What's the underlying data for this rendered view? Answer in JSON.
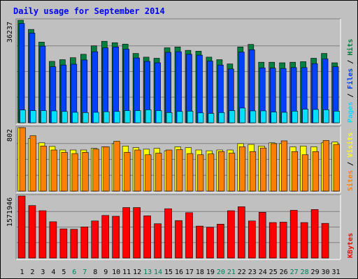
{
  "title": "Daily usage for September 2014",
  "colors": {
    "background": "#C0C0C0",
    "frame_border": "#000000",
    "title_text": "#0000FF",
    "hits": "#008040",
    "files": "#0040FF",
    "pages": "#00E0FF",
    "visits": "#FFFF00",
    "sites": "#FF8000",
    "kbytes": "#FF0000",
    "weekday_label": "#000000",
    "weekend_label": "#00805C"
  },
  "chart_data": {
    "type": "bar",
    "x": [
      1,
      2,
      3,
      4,
      5,
      6,
      7,
      8,
      9,
      10,
      11,
      12,
      13,
      14,
      15,
      16,
      17,
      18,
      19,
      20,
      21,
      22,
      23,
      24,
      25,
      26,
      27,
      28,
      29,
      30,
      31
    ],
    "x_labels": [
      "1",
      "2",
      "3",
      "4",
      "5",
      "6",
      "7",
      "8",
      "9",
      "10",
      "11",
      "12",
      "13",
      "14",
      "15",
      "16",
      "17",
      "18",
      "19",
      "20",
      "21",
      "22",
      "23",
      "24",
      "25",
      "26",
      "27",
      "28",
      "29",
      "30",
      "31"
    ],
    "weekend_days": [
      6,
      7,
      13,
      14,
      20,
      21,
      27,
      28
    ],
    "panels": [
      {
        "id": "hits-files-pages",
        "max_label": "36237",
        "ymax": 36237,
        "legend": [
          "Pages",
          "Files",
          "Hits"
        ],
        "series": [
          {
            "name": "Hits",
            "color": "#008040",
            "values": [
              36237,
              33000,
              28500,
              21700,
              22300,
              23000,
              24200,
              27200,
              28800,
              28300,
              27800,
              24500,
              23200,
              22800,
              26500,
              26800,
              25600,
              25300,
              23200,
              22300,
              20800,
              26800,
              27700,
              21400,
              21400,
              21200,
              21400,
              21600,
              22800,
              24500,
              21200
            ]
          },
          {
            "name": "Files",
            "color": "#0040FF",
            "values": [
              35100,
              31700,
              27100,
              19800,
              20400,
              20700,
              22200,
              25100,
              26500,
              26800,
              26000,
              22900,
              21700,
              21200,
              24900,
              25100,
              24200,
              23900,
              21800,
              20400,
              19000,
              25000,
              25800,
              19400,
              19300,
              19200,
              19500,
              19500,
              20900,
              22600,
              19800
            ]
          },
          {
            "name": "Pages",
            "color": "#00E0FF",
            "values": [
              4500,
              4300,
              4300,
              4200,
              4000,
              3700,
              3600,
              3700,
              3900,
              4000,
              4300,
              4300,
              4600,
              4300,
              3600,
              4000,
              4100,
              3500,
              3300,
              3600,
              4300,
              5200,
              4200,
              4200,
              3800,
              3700,
              4100,
              4800,
              4700,
              4600,
              4100
            ]
          }
        ]
      },
      {
        "id": "visits-sites",
        "max_label": "802",
        "ymax": 802,
        "legend": [
          "Sites",
          "Visits"
        ],
        "series": [
          {
            "name": "Visits",
            "color": "#FFFF00",
            "values": [
              802,
              665,
              610,
              565,
              520,
              520,
              520,
              540,
              560,
              600,
              570,
              550,
              530,
              540,
              510,
              560,
              550,
              520,
              510,
              520,
              520,
              600,
              590,
              570,
              610,
              600,
              560,
              570,
              560,
              610,
              620
            ]
          },
          {
            "name": "Sites",
            "color": "#FF8000",
            "values": [
              802,
              700,
              570,
              520,
              490,
              475,
              490,
              530,
              560,
              630,
              490,
              520,
              460,
              480,
              520,
              525,
              475,
              460,
              470,
              500,
              480,
              560,
              500,
              545,
              600,
              635,
              500,
              460,
              500,
              640,
              590
            ]
          }
        ]
      },
      {
        "id": "kbytes",
        "max_label": "1571946",
        "ymax": 1571946,
        "legend": [
          "KBytes"
        ],
        "series": [
          {
            "name": "KBytes",
            "color": "#FF0000",
            "values": [
              1571946,
              1330000,
              1200000,
              920000,
              740000,
              730000,
              790000,
              940000,
              1080000,
              1060000,
              1280000,
              1280000,
              1070000,
              870000,
              1250000,
              950000,
              1150000,
              810000,
              780000,
              860000,
              1200000,
              1300000,
              940000,
              1160000,
              900000,
              910000,
              1210000,
              900000,
              1230000,
              880000,
              0
            ]
          }
        ]
      }
    ]
  }
}
